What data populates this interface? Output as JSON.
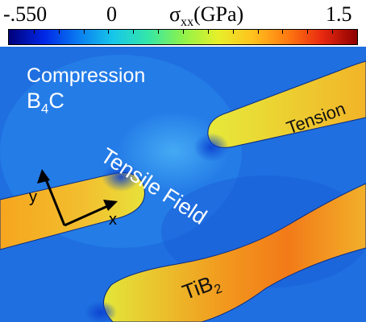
{
  "colorbar": {
    "min_label": "-.550",
    "zero_label": "0",
    "symbol": "σ",
    "symbol_sub": "xx",
    "unit": "(GPa)",
    "max_label": "1.5",
    "colors": [
      "#00007a",
      "#0026e6",
      "#0a7cf0",
      "#17c7ea",
      "#34e6a8",
      "#8ef24a",
      "#e7f02a",
      "#ffc21e",
      "#ff7a10",
      "#e82810",
      "#8e0000"
    ]
  },
  "labels": {
    "compression": "Compression",
    "material_matrix": "B",
    "material_matrix_sub": "4",
    "material_matrix_suffix": "C",
    "tension": "Tension",
    "tensile_field": "Tensile Field",
    "inclusion_prefix": "TiB",
    "inclusion_sub": "2",
    "axis_y": "y",
    "axis_x": "x"
  },
  "colors": {
    "matrix": "#1f6fe0",
    "inclusion": "#f2c030",
    "text_light": "#ffffff",
    "text_dark": "#111111"
  }
}
